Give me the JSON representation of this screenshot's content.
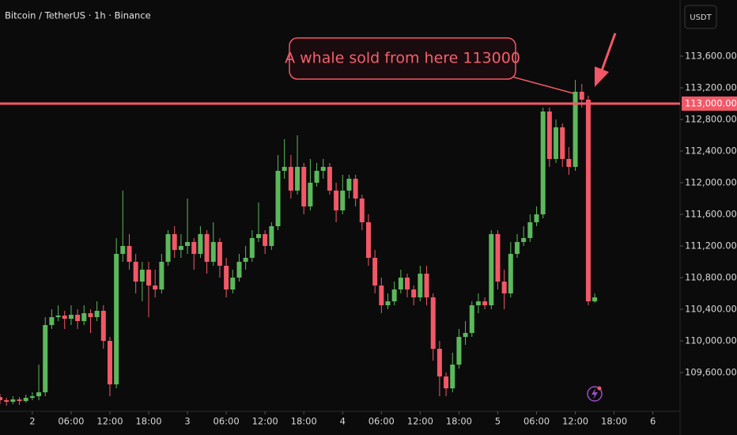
{
  "chart_data": {
    "type": "candlestick",
    "title": "Bitcoin / TetherUS · 1h · Binance",
    "currency": "USDT",
    "annotation": "A whale sold from here 113000",
    "up_color": "#5cb85c",
    "down_color": "#f25867",
    "xlim": [
      -5,
      100.2
    ],
    "xticks": [
      {
        "value": 0,
        "label": "2"
      },
      {
        "value": 6,
        "label": "06:00"
      },
      {
        "value": 12,
        "label": "12:00"
      },
      {
        "value": 18,
        "label": "18:00"
      },
      {
        "value": 24,
        "label": "3"
      },
      {
        "value": 30,
        "label": "06:00"
      },
      {
        "value": 36,
        "label": "12:00"
      },
      {
        "value": 42,
        "label": "18:00"
      },
      {
        "value": 48,
        "label": "4"
      },
      {
        "value": 54,
        "label": "06:00"
      },
      {
        "value": 60,
        "label": "12:00"
      },
      {
        "value": 66,
        "label": "18:00"
      },
      {
        "value": 72,
        "label": "5"
      },
      {
        "value": 78,
        "label": "06:00"
      },
      {
        "value": 84,
        "label": "12:00"
      },
      {
        "value": 90,
        "label": "18:00"
      },
      {
        "value": 96,
        "label": "6"
      }
    ],
    "ylim": [
      109110,
      114310
    ],
    "yticks": [
      {
        "value": 109600,
        "label": "109,600.00"
      },
      {
        "value": 110000,
        "label": "110,000.00"
      },
      {
        "value": 110400,
        "label": "110,400.00"
      },
      {
        "value": 110800,
        "label": "110,800.00"
      },
      {
        "value": 111200,
        "label": "111,200.00"
      },
      {
        "value": 111600,
        "label": "111,600.00"
      },
      {
        "value": 112000,
        "label": "112,000.00"
      },
      {
        "value": 112400,
        "label": "112,400.00"
      },
      {
        "value": 112800,
        "label": "112,800.00"
      },
      {
        "value": 113200,
        "label": "113,200.00"
      },
      {
        "value": 113600,
        "label": "113,600.00"
      }
    ],
    "price_line": {
      "value": 113000,
      "label": "113,000.00",
      "color": "#f25867"
    },
    "candles": {
      "x": [
        -5,
        -4,
        -3,
        -2,
        -1,
        0,
        1,
        2,
        3,
        4,
        5,
        6,
        7,
        8,
        9,
        10,
        11,
        12,
        13,
        14,
        15,
        16,
        17,
        18,
        19,
        20,
        21,
        22,
        23,
        24,
        25,
        26,
        27,
        28,
        29,
        30,
        31,
        32,
        33,
        34,
        35,
        36,
        37,
        38,
        39,
        40,
        41,
        42,
        43,
        44,
        45,
        46,
        47,
        48,
        49,
        50,
        51,
        52,
        53,
        54,
        55,
        56,
        57,
        58,
        59,
        60,
        61,
        62,
        63,
        64,
        65,
        66,
        67,
        68,
        69,
        70,
        71,
        72,
        73,
        74,
        75,
        76,
        77,
        78,
        79,
        80,
        81,
        82,
        83,
        84,
        85,
        86,
        87
      ],
      "open": [
        109290,
        109250,
        109230,
        109260,
        109240,
        109280,
        109300,
        109350,
        110200,
        110300,
        110320,
        110280,
        110330,
        110250,
        110350,
        110300,
        110380,
        110000,
        109450,
        111100,
        111200,
        111000,
        110750,
        110900,
        110700,
        110650,
        111000,
        111350,
        111150,
        111200,
        111250,
        111100,
        111350,
        111000,
        111250,
        110950,
        110650,
        110800,
        111000,
        111050,
        111300,
        111350,
        111200,
        111450,
        112150,
        112200,
        111900,
        112200,
        111700,
        112000,
        112150,
        112200,
        111900,
        111650,
        111900,
        112050,
        111800,
        111500,
        111050,
        110700,
        110450,
        110500,
        110650,
        110800,
        110650,
        110550,
        110850,
        110550,
        109900,
        109550,
        109400,
        109700,
        110050,
        110100,
        110450,
        110500,
        110450,
        111350,
        110750,
        110600,
        111100,
        111250,
        111300,
        111500,
        111600,
        112900,
        112300,
        112700,
        112300,
        112200,
        113150,
        113050,
        110500
      ],
      "high": [
        109330,
        109280,
        109300,
        109290,
        109320,
        109350,
        109700,
        110300,
        110400,
        110450,
        110380,
        110450,
        110400,
        110450,
        110400,
        110500,
        110450,
        110050,
        111300,
        111900,
        111350,
        111100,
        111000,
        111000,
        110900,
        111100,
        111400,
        111450,
        111350,
        111800,
        111300,
        111450,
        111400,
        111500,
        111300,
        111050,
        110900,
        111100,
        111200,
        111400,
        111750,
        111400,
        111500,
        112350,
        112550,
        112350,
        112600,
        112250,
        112300,
        112250,
        112300,
        112250,
        112000,
        112100,
        112100,
        112100,
        111850,
        111600,
        111150,
        110800,
        110600,
        110750,
        110900,
        110850,
        110700,
        110950,
        110950,
        110600,
        110000,
        109600,
        109850,
        110150,
        110250,
        110500,
        110600,
        110550,
        111400,
        111400,
        110900,
        111250,
        111350,
        111450,
        111600,
        111700,
        112950,
        112950,
        112800,
        112750,
        112450,
        113300,
        113250,
        113100,
        110600
      ],
      "low": [
        109200,
        109180,
        109200,
        109190,
        109220,
        109250,
        109250,
        109300,
        110150,
        110250,
        110150,
        110200,
        110150,
        110200,
        110100,
        110250,
        109900,
        109300,
        109400,
        111000,
        110900,
        110600,
        110500,
        110300,
        110550,
        110600,
        110950,
        111050,
        111050,
        111100,
        110900,
        111050,
        110850,
        110950,
        110800,
        110550,
        110600,
        110750,
        110900,
        111000,
        111250,
        111100,
        111150,
        111400,
        112050,
        111800,
        111850,
        111600,
        111650,
        111950,
        112050,
        111850,
        111500,
        111600,
        111800,
        111700,
        111400,
        110950,
        110600,
        110350,
        110400,
        110450,
        110600,
        110550,
        110450,
        110500,
        110450,
        109750,
        109300,
        109300,
        109350,
        109650,
        109950,
        110050,
        110350,
        110400,
        110400,
        110650,
        110400,
        110550,
        111050,
        111200,
        111250,
        111450,
        111550,
        112200,
        112250,
        112200,
        112100,
        112150,
        112950,
        110450,
        110480
      ],
      "close": [
        109250,
        109230,
        109260,
        109240,
        109280,
        109300,
        109350,
        110200,
        110300,
        110320,
        110280,
        110330,
        110250,
        110350,
        110300,
        110380,
        110000,
        109450,
        111100,
        111200,
        111000,
        110750,
        110900,
        110700,
        110650,
        111000,
        111350,
        111150,
        111200,
        111250,
        111100,
        111350,
        111000,
        111250,
        110950,
        110650,
        110800,
        111000,
        111050,
        111300,
        111350,
        111200,
        111450,
        112150,
        112200,
        111900,
        112200,
        111700,
        112000,
        112150,
        112200,
        111900,
        111650,
        111900,
        112050,
        111800,
        111500,
        111050,
        110700,
        110450,
        110500,
        110650,
        110800,
        110650,
        110550,
        110850,
        110550,
        109900,
        109550,
        109400,
        109700,
        110050,
        110100,
        110450,
        110500,
        110450,
        111350,
        110750,
        110600,
        111100,
        111250,
        111300,
        111500,
        111600,
        112900,
        112300,
        112700,
        112300,
        112200,
        113150,
        113050,
        110500,
        110550
      ]
    }
  }
}
